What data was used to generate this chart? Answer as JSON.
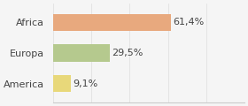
{
  "categories": [
    "America",
    "Europa",
    "Africa"
  ],
  "values": [
    9.1,
    29.5,
    61.4
  ],
  "labels": [
    "9,1%",
    "29,5%",
    "61,4%"
  ],
  "bar_colors": [
    "#e8d87a",
    "#b5c98e",
    "#e8a97e"
  ],
  "background_color": "#f5f5f5",
  "xlim": [
    0,
    100
  ],
  "label_fontsize": 8,
  "tick_fontsize": 8
}
